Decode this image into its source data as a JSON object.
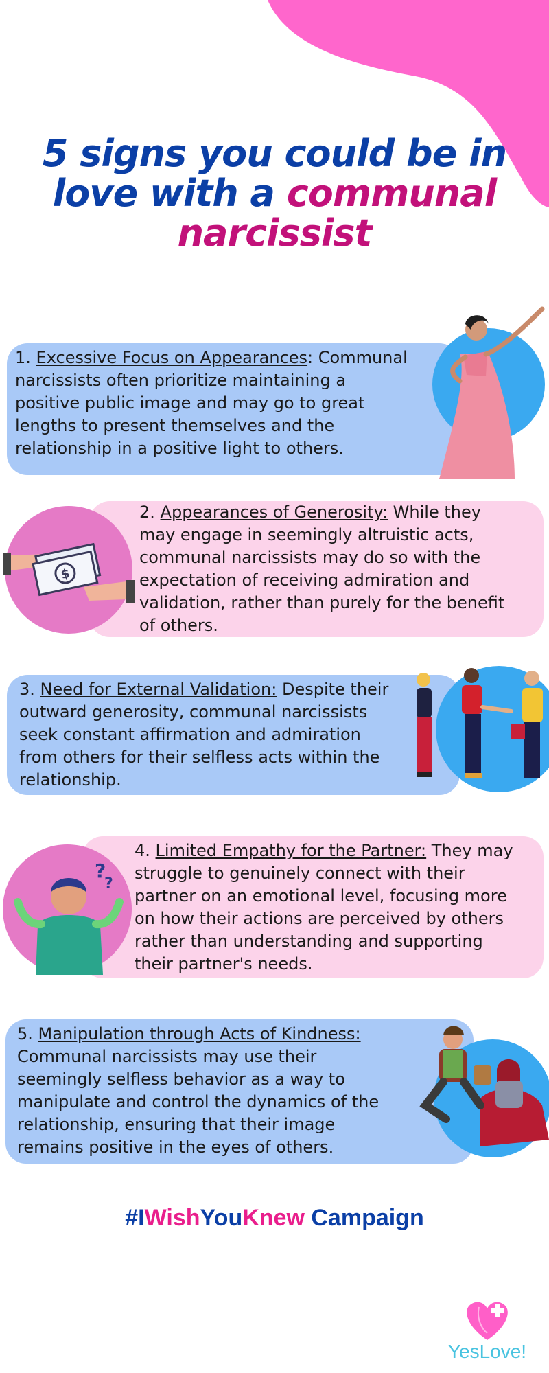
{
  "title": {
    "line1": "5 signs you could be in",
    "line2_plain": "love with a ",
    "line2_accent": "communal",
    "line3_accent": "narcissist"
  },
  "signs": [
    {
      "heading": "Excessive Focus on Appearances",
      "number": "1.",
      "lines": [
        ": Communal",
        "narcissists often prioritize maintaining a",
        "positive public image and may go to great",
        "lengths to present themselves and the",
        "relationship in a positive light to others."
      ],
      "illustration": "woman-in-pink-gown-illustration"
    },
    {
      "number": "2.",
      "heading": "Appearances of Generosity:",
      "lines": [
        " While they",
        "may engage in seemingly altruistic acts,",
        "communal narcissists may do so with the",
        "expectation of receiving admiration and",
        "validation, rather than purely for the benefit",
        "of others."
      ],
      "illustration": "hands-exchanging-money-illustration"
    },
    {
      "number": "3.",
      "heading": "Need for External Validation:",
      "lines": [
        " Despite their",
        "outward generosity, communal narcissists",
        "seek constant affirmation and admiration",
        "from others for their selfless acts within the",
        "relationship."
      ],
      "illustration": "people-applauding-illustration"
    },
    {
      "number": "4.",
      "heading": "Limited Empathy for the Partner:",
      "lines": [
        " They may",
        "struggle to genuinely connect with their",
        "partner on an emotional level, focusing more",
        "on how their actions are perceived by others",
        "rather than understanding and supporting",
        "their partner's needs."
      ],
      "illustration": "confused-man-illustration"
    },
    {
      "number": "5.",
      "heading": "Manipulation through Acts of Kindness:",
      "lines": [
        "",
        "Communal narcissists may use their",
        " seemingly selfless behavior as a way to",
        "manipulate and control the dynamics of the",
        "relationship, ensuring that their image",
        "remains positive in the eyes of others."
      ],
      "illustration": "man-giving-food-illustration"
    }
  ],
  "campaign": {
    "hash": "#I",
    "wish": "Wish",
    "you": "You",
    "knew": "Knew",
    "rest": " Campaign"
  },
  "logo": {
    "text": "YesLove!",
    "icon": "heart-cross-icon"
  },
  "colors": {
    "title_blue": "#0b3fa6",
    "title_magenta": "#c2117a",
    "blob_pink": "#ff66cc",
    "card_blue": "#a9c9f7",
    "card_pink": "#fcd3ea",
    "circle_blue": "#3aa9f0",
    "circle_pink": "#e57ac6",
    "campaign_pink": "#e91e8c",
    "logo_cyan": "#49c3e0"
  }
}
